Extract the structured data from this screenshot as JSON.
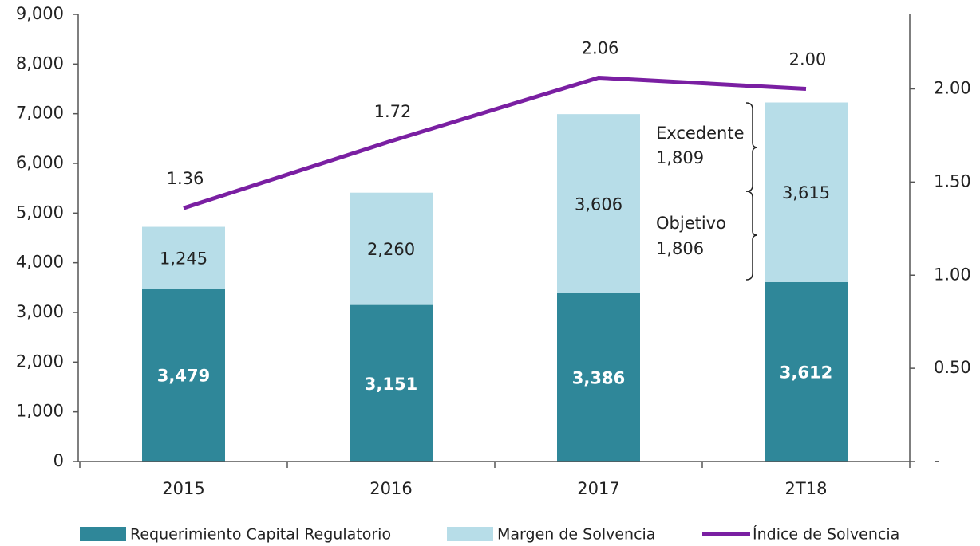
{
  "chart_data": {
    "type": "bar",
    "categories": [
      "2015",
      "2016",
      "2017",
      "2T18"
    ],
    "series": [
      {
        "name": "Requerimiento Capital Regulatorio",
        "color": "#2f8799",
        "values": [
          3479,
          3151,
          3386,
          3612
        ],
        "value_labels": [
          "3,479",
          "3,151",
          "3,386",
          "3,612"
        ]
      },
      {
        "name": "Margen de Solvencia",
        "color": "#b7dde8",
        "values": [
          1245,
          2260,
          3606,
          3615
        ],
        "value_labels": [
          "1,245",
          "2,260",
          "3,606",
          "3,615"
        ]
      },
      {
        "name": "Índice de Solvencia",
        "type": "line",
        "axis": "y2",
        "color": "#7a1fa2",
        "values": [
          1.36,
          1.72,
          2.06,
          2.0
        ],
        "value_labels": [
          "1.36",
          "1.72",
          "2.06",
          "2.00"
        ]
      }
    ],
    "stacked": true,
    "ylim": [
      0,
      9000
    ],
    "yticks": [
      0,
      {
        "value": 1000,
        "label": "1,000"
      },
      {
        "value": 2000,
        "label": "2,000"
      },
      {
        "value": 3000,
        "label": "3,000"
      },
      {
        "value": 4000,
        "label": "4,000"
      },
      {
        "value": 5000,
        "label": "5,000"
      },
      {
        "value": 6000,
        "label": "6,000"
      },
      {
        "value": 7000,
        "label": "7,000"
      },
      {
        "value": 8000,
        "label": "8,000"
      },
      {
        "value": 9000,
        "label": "9,000"
      }
    ],
    "y2lim": [
      0,
      2.4
    ],
    "y2ticks": [
      {
        "value": 0,
        "label": "-"
      },
      {
        "value": 0.5,
        "label": "0.50"
      },
      {
        "value": 1,
        "label": "1.00"
      },
      {
        "value": 1.5,
        "label": "1.50"
      },
      {
        "value": 2,
        "label": "2.00"
      }
    ],
    "annotations": [
      {
        "text": "Excedente",
        "amount": "1,809"
      },
      {
        "text": "Objetivo",
        "amount": "1,806"
      }
    ],
    "legend": "bottom"
  }
}
